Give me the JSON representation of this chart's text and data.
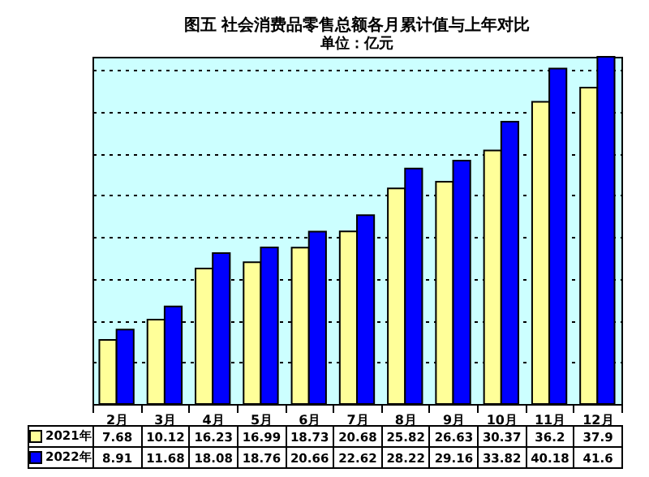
{
  "chart_data": {
    "type": "bar",
    "title": "图五  社会消费品零售总额各月累计值与上年对比",
    "subtitle": "单位：亿元",
    "categories": [
      "2月",
      "3月",
      "4月",
      "5月",
      "6月",
      "7月",
      "8月",
      "9月",
      "10月",
      "11月",
      "12月"
    ],
    "series": [
      {
        "name": "2021年",
        "color": "#ffff99",
        "values": [
          7.68,
          10.12,
          16.23,
          16.99,
          18.73,
          20.68,
          25.82,
          26.63,
          30.37,
          36.2,
          37.9
        ]
      },
      {
        "name": "2022年",
        "color": "#0000ff",
        "values": [
          8.91,
          11.68,
          18.08,
          18.76,
          20.66,
          22.62,
          28.22,
          29.16,
          33.82,
          40.18,
          41.6
        ]
      }
    ],
    "data_labels": true,
    "grid": "y",
    "legend": "bottom",
    "tick_labels": "x"
  }
}
